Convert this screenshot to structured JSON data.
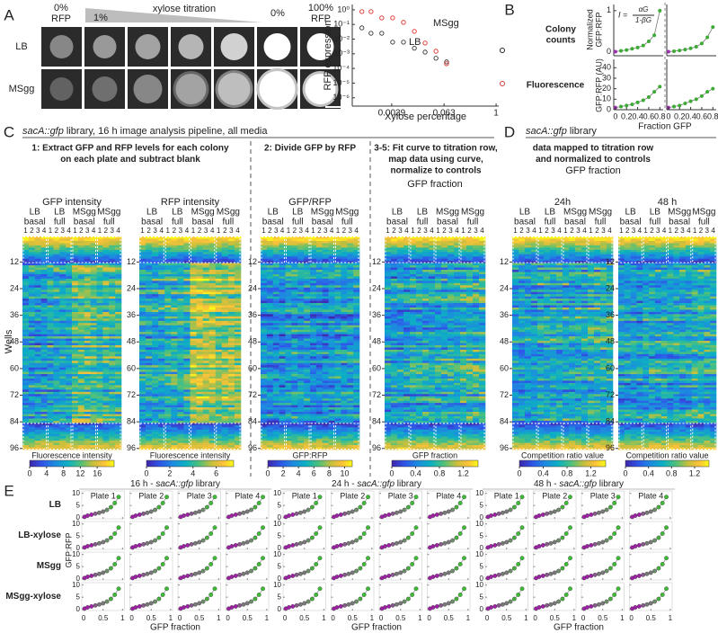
{
  "panel_a": {
    "label": "A",
    "top_left": [
      "0%",
      "RFP"
    ],
    "xylose_start": "1%",
    "xylose_title": "xylose titration",
    "zero": "0%",
    "top_right": [
      "100%",
      "RFP"
    ],
    "rows": [
      "LB",
      "MSgg"
    ],
    "plot": {
      "type": "scatter",
      "ylabel": "RFP expression",
      "xlabel": "Xylose percentage",
      "log_x": true,
      "log_y": true,
      "xlim": [
        0.00048,
        1.15
      ],
      "ylim": [
        2.7e-07,
        2.3
      ],
      "xticks": [
        0.0039,
        0.063,
        1
      ],
      "yticks": [
        {
          "value": 1,
          "label": "10⁰"
        },
        {
          "value": 0.1,
          "label": "10⁻¹"
        },
        {
          "value": 0.01,
          "label": "10⁻²"
        },
        {
          "value": 0.001,
          "label": "10⁻³"
        },
        {
          "value": 0.0001,
          "label": "10⁻⁴"
        },
        {
          "value": 1e-05,
          "label": "10⁻⁵"
        },
        {
          "value": 1e-06,
          "label": "10⁻⁶"
        }
      ],
      "series": [
        {
          "name": "LB",
          "color": "#333333",
          "x": [
            0.0008,
            0.0013,
            0.0023,
            0.0041,
            0.0073,
            0.013,
            0.023,
            0.041,
            0.072
          ],
          "values": [
            0.059,
            0.025,
            0.025,
            0.0062,
            0.0062,
            0.0024,
            0.0013,
            0.0005,
            0.00028
          ]
        },
        {
          "name": "MSgg",
          "color": "#e0302a",
          "x": [
            0.0008,
            0.0013,
            0.0023,
            0.0041,
            0.0073,
            0.013,
            0.023,
            0.041,
            0.072
          ],
          "values": [
            0.76,
            0.76,
            0.28,
            0.28,
            0.14,
            0.034,
            0.0054,
            0.0015,
            0.00021
          ]
        }
      ]
    }
  },
  "panel_b": {
    "label": "B",
    "legend": [
      [
        "Colony",
        "counts"
      ],
      [
        "Fluorescence"
      ]
    ],
    "legend_colors": [
      "#222222",
      "#d03a3a"
    ],
    "formula_lhs": "I =",
    "formula_num": "αG",
    "formula_den": "1-βG",
    "ylabel_top": [
      "Normalized",
      "GFP:RFP"
    ],
    "ylabel_bottom": "GFP:RFP (AU)",
    "xlabel": "Fraction GFP",
    "xlim": [
      -0.03,
      0.86
    ],
    "xticks": [
      0,
      0.2,
      0.4,
      0.6,
      0.8
    ],
    "top": {
      "ylim": [
        -0.1,
        1.15
      ],
      "yticks": [
        0,
        1
      ]
    },
    "bottom": {
      "ylim": [
        0,
        48
      ],
      "yticks": [
        0,
        10,
        20,
        30,
        40
      ]
    },
    "control_color": "#9b2fae",
    "sample_color": "#3caa35",
    "plots": [
      {
        "x": [
          0,
          0.1,
          0.2,
          0.3,
          0.4,
          0.5,
          0.6,
          0.7,
          0.8
        ],
        "top": [
          0,
          0.02,
          0.04,
          0.07,
          0.1,
          0.15,
          0.25,
          0.4,
          1.0
        ],
        "bottom": [
          2,
          3,
          4,
          5,
          7,
          9,
          12,
          17,
          22
        ]
      },
      {
        "x": [
          0,
          0.1,
          0.2,
          0.3,
          0.4,
          0.5,
          0.6,
          0.7,
          0.8
        ],
        "top": [
          0,
          0.01,
          0.03,
          0.05,
          0.08,
          0.12,
          0.2,
          0.35,
          0.6
        ],
        "bottom": [
          2,
          3,
          4,
          6,
          8,
          10,
          13,
          17,
          20
        ]
      }
    ]
  },
  "panel_c": {
    "label": "C",
    "title_italic": "sacA::gfp",
    "title_rest": " library, 16 h image analysis pipeline, all media",
    "steps": [
      [
        "1: Extract GFP and RFP levels for each colony",
        "on each plate and subtract blank"
      ],
      [
        "2: Divide GFP by RFP"
      ],
      [
        "3-5: Fit curve to titration row,",
        "map data using curve,",
        "normalize to controls"
      ]
    ],
    "column_groups": [
      [
        "LB",
        "basal"
      ],
      [
        "LB",
        "full"
      ],
      [
        "MSgg",
        "basal"
      ],
      [
        "MSgg",
        "full"
      ]
    ],
    "plate_numbers": [
      1,
      2,
      3,
      4
    ],
    "ylabel": "Wells",
    "ylim": [
      0.5,
      96.5
    ],
    "yticks": [
      12,
      24,
      36,
      48,
      60,
      72,
      84,
      96
    ],
    "heatmaps": [
      {
        "title": "GFP intensity",
        "colorbar_label": "Fluorescence intensity",
        "clim": [
          0,
          20
        ],
        "cticks": [
          0,
          4,
          8,
          12,
          16
        ]
      },
      {
        "title": "RFP intensity",
        "colorbar_label": "Fluorescence intensity",
        "clim": [
          0,
          7.5
        ],
        "cticks": [
          0,
          2,
          4,
          6
        ]
      },
      {
        "title": "GFP/RFP",
        "colorbar_label": "GFP:RFP",
        "clim": [
          0,
          11
        ],
        "cticks": [
          0,
          2,
          4,
          6,
          8,
          10
        ]
      },
      {
        "title": "GFP fraction",
        "colorbar_label": "GFP fraction",
        "clim": [
          0,
          1.45
        ],
        "cticks": [
          0,
          0.4,
          0.8,
          1.2
        ]
      }
    ]
  },
  "panel_d": {
    "label": "D",
    "title_italic": "sacA::gfp",
    "title_rest": " library",
    "subtitle": [
      "data mapped to titration row",
      "and normalized to controls"
    ],
    "heading": "GFP fraction",
    "heatmaps": [
      {
        "title": "24h",
        "colorbar_label": "Competition ratio value",
        "clim": [
          0,
          1.45
        ],
        "cticks": [
          0,
          0.4,
          0.8,
          1.2
        ]
      },
      {
        "title": "48 h",
        "colorbar_label": "Competition ratio value",
        "clim": [
          0,
          1.45
        ],
        "cticks": [
          0,
          0.4,
          0.8,
          1.2
        ]
      }
    ]
  },
  "panel_e": {
    "label": "E",
    "groups": [
      {
        "time": "16 h - ",
        "italic": "sacA::gfp",
        "rest": " library"
      },
      {
        "time": "24 h - ",
        "italic": "sacA::gfp",
        "rest": " library"
      },
      {
        "time": "48 h - ",
        "italic": "sacA::gfp",
        "rest": " library"
      }
    ],
    "rows": [
      "LB",
      "LB-xylose",
      "MSgg",
      "MSgg-xylose"
    ],
    "plates": [
      "Plate 1",
      "Plate 2",
      "Plate 3",
      "Plate 4"
    ],
    "ylabel": "GFP:RFP",
    "xlabel": "GFP fraction",
    "xlim": [
      -0.05,
      1.05
    ],
    "ylim": [
      -0.5,
      11
    ],
    "xticks": [
      0,
      0.5,
      1
    ],
    "yticks": [
      0,
      5,
      10
    ],
    "fit_color": "#9a9a9a",
    "points": {
      "x": [
        0.02,
        0.1,
        0.2,
        0.3,
        0.4,
        0.5,
        0.6,
        0.7,
        0.8,
        0.9
      ],
      "values": [
        0.3,
        0.8,
        1.2,
        1.6,
        2,
        2.5,
        3.2,
        4.3,
        6,
        8.5
      ],
      "colors": [
        "#a020a8",
        "#a020a8",
        "#a020a8",
        "#8a5a8e",
        "#7a7a7a",
        "#7a7a7a",
        "#6f8f6c",
        "#45b03c",
        "#3cbf34",
        "#3cbf34"
      ]
    }
  }
}
